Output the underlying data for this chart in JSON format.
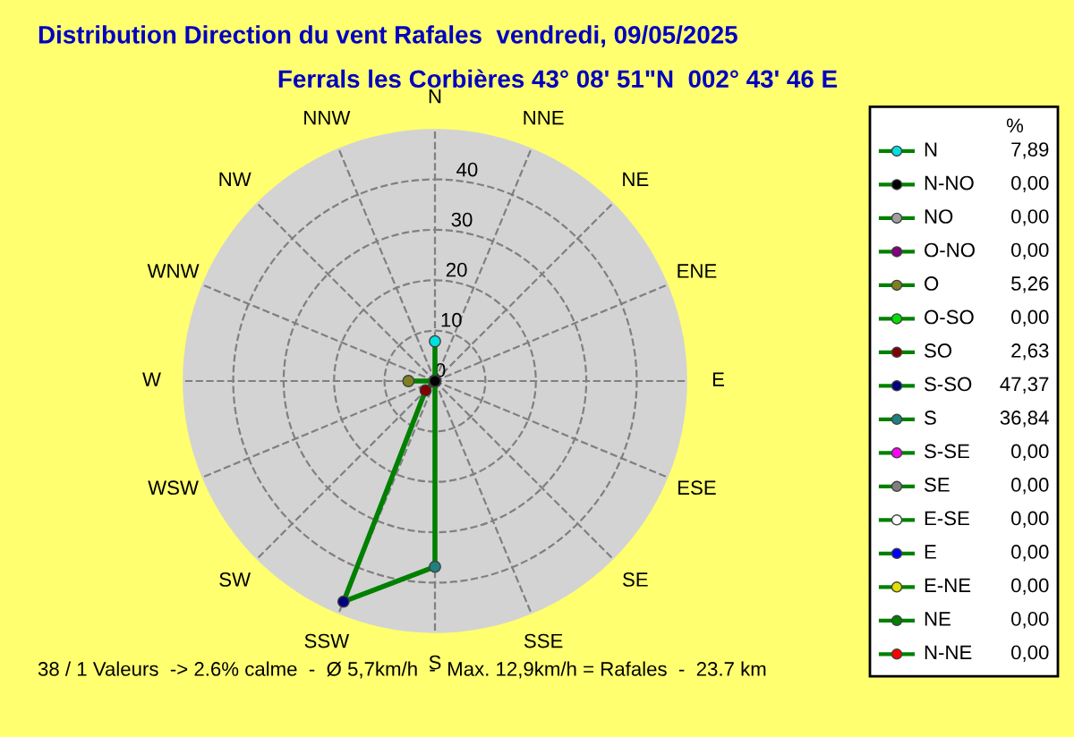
{
  "chart_data": {
    "type": "radar",
    "title": "Distribution Direction du vent Rafales  vendredi, 09/05/2025",
    "subtitle": "Ferrals les Corbières 43° 08' 51\"N  002° 43' 46 E",
    "categories": [
      "N",
      "NNE",
      "NE",
      "ENE",
      "E",
      "ESE",
      "SE",
      "SSE",
      "S",
      "SSW",
      "SW",
      "WSW",
      "W",
      "WNW",
      "NW",
      "NNW"
    ],
    "ylim": [
      0,
      50
    ],
    "yticks": [
      0,
      10,
      20,
      30,
      40
    ],
    "grid": true,
    "legend_title": "%",
    "marker": "circle",
    "series": [
      {
        "color": "#008000",
        "values": [
          7.89,
          0,
          0,
          0,
          0,
          0,
          0,
          0,
          36.84,
          47.37,
          2.63,
          0,
          5.26,
          0,
          0,
          0
        ],
        "colors": [
          "#00e0e0",
          "#ff0000",
          "#008000",
          "#e0e000",
          "#0000ff",
          "#ffffff",
          "#808080",
          "#ff00ff",
          "#208080",
          "#000080",
          "#800000",
          "#00e000",
          "#808020",
          "#800080",
          "#a0a0a0",
          "#000000"
        ]
      }
    ],
    "annotations": [
      "38 / 1 Valeurs  -> 2.6% calme  -  Ø 5,7km/h  -  Max. 12,9km/h = Rafales  -  23.7 km",
      "N",
      "N-NO",
      "NO",
      "O-NO",
      "O",
      "O-SO",
      "SO",
      "S-SO",
      "S",
      "S-SE",
      "SE",
      "E-SE",
      "E",
      "E-NE",
      "NE",
      "N-NE",
      "7,89",
      "0,00",
      "0,00",
      "0,00",
      "5,26",
      "0,00",
      "2,63",
      "47,37",
      "36,84",
      "0,00",
      "0,00",
      "0,00",
      "0,00",
      "0,00",
      "0,00",
      "0,00"
    ]
  }
}
